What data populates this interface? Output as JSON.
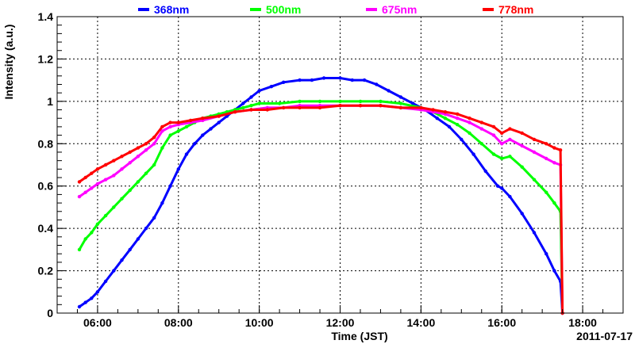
{
  "chart_data": {
    "type": "scatter",
    "xlabel": "Time (JST)",
    "ylabel": "Intensity (a.u.)",
    "date_label": "2011-07-17",
    "x_unit": "hours (JST)",
    "xlim": [
      5.0,
      19.0
    ],
    "ylim": [
      0,
      1.4
    ],
    "x_ticks": [
      {
        "value": 6,
        "label": "06:00"
      },
      {
        "value": 8,
        "label": "08:00"
      },
      {
        "value": 10,
        "label": "10:00"
      },
      {
        "value": 12,
        "label": "12:00"
      },
      {
        "value": 14,
        "label": "14:00"
      },
      {
        "value": 16,
        "label": "16:00"
      },
      {
        "value": 18,
        "label": "18:00"
      }
    ],
    "y_ticks": [
      {
        "value": 0,
        "label": "0"
      },
      {
        "value": 0.2,
        "label": "0.2"
      },
      {
        "value": 0.4,
        "label": "0.4"
      },
      {
        "value": 0.6,
        "label": "0.6"
      },
      {
        "value": 0.8,
        "label": "0.8"
      },
      {
        "value": 1,
        "label": "1"
      },
      {
        "value": 1.2,
        "label": "1.2"
      },
      {
        "value": 1.4,
        "label": "1.4"
      }
    ],
    "grid": true,
    "legend_position": "top",
    "series": [
      {
        "name": "368nm",
        "color": "#0000ff",
        "x": [
          5.55,
          5.7,
          5.85,
          6.0,
          6.2,
          6.4,
          6.6,
          6.8,
          7.0,
          7.2,
          7.4,
          7.6,
          7.8,
          8.0,
          8.2,
          8.4,
          8.6,
          8.8,
          9.0,
          9.2,
          9.4,
          9.6,
          9.8,
          10.0,
          10.3,
          10.6,
          11.0,
          11.3,
          11.6,
          12.0,
          12.3,
          12.6,
          12.9,
          13.2,
          13.5,
          13.8,
          14.1,
          14.4,
          14.7,
          15.0,
          15.3,
          15.6,
          15.9,
          16.0,
          16.2,
          16.5,
          16.8,
          17.1,
          17.3,
          17.45,
          17.5
        ],
        "y": [
          0.03,
          0.05,
          0.07,
          0.1,
          0.15,
          0.2,
          0.25,
          0.3,
          0.35,
          0.4,
          0.45,
          0.52,
          0.6,
          0.68,
          0.75,
          0.8,
          0.84,
          0.87,
          0.9,
          0.93,
          0.96,
          0.99,
          1.02,
          1.05,
          1.07,
          1.09,
          1.1,
          1.1,
          1.11,
          1.11,
          1.1,
          1.1,
          1.08,
          1.05,
          1.02,
          0.99,
          0.96,
          0.92,
          0.88,
          0.82,
          0.75,
          0.67,
          0.6,
          0.59,
          0.55,
          0.47,
          0.38,
          0.28,
          0.2,
          0.15,
          0.0
        ]
      },
      {
        "name": "500nm",
        "color": "#00ff00",
        "x": [
          5.55,
          5.7,
          5.85,
          6.0,
          6.2,
          6.4,
          6.6,
          6.8,
          7.0,
          7.2,
          7.4,
          7.6,
          7.8,
          8.0,
          8.2,
          8.4,
          8.6,
          8.8,
          9.0,
          9.2,
          9.4,
          9.6,
          9.8,
          10.0,
          10.5,
          11.0,
          11.5,
          12.0,
          12.5,
          13.0,
          13.5,
          14.0,
          14.3,
          14.6,
          14.9,
          15.2,
          15.5,
          15.8,
          16.0,
          16.2,
          16.5,
          16.8,
          17.1,
          17.3,
          17.45,
          17.5
        ],
        "y": [
          0.3,
          0.35,
          0.38,
          0.42,
          0.46,
          0.5,
          0.54,
          0.58,
          0.62,
          0.66,
          0.7,
          0.78,
          0.84,
          0.86,
          0.88,
          0.9,
          0.92,
          0.93,
          0.94,
          0.95,
          0.96,
          0.97,
          0.98,
          0.99,
          0.99,
          1.0,
          1.0,
          1.0,
          1.0,
          1.0,
          0.99,
          0.97,
          0.95,
          0.92,
          0.89,
          0.85,
          0.8,
          0.75,
          0.73,
          0.74,
          0.69,
          0.63,
          0.57,
          0.52,
          0.48,
          0.0
        ]
      },
      {
        "name": "675nm",
        "color": "#ff00ff",
        "x": [
          5.55,
          5.7,
          5.85,
          6.0,
          6.2,
          6.4,
          6.6,
          6.8,
          7.0,
          7.2,
          7.4,
          7.6,
          7.8,
          8.0,
          8.3,
          8.6,
          9.0,
          9.4,
          9.8,
          10.2,
          10.6,
          11.0,
          11.5,
          12.0,
          12.5,
          13.0,
          13.5,
          14.0,
          14.3,
          14.6,
          14.9,
          15.2,
          15.5,
          15.8,
          16.0,
          16.2,
          16.5,
          16.8,
          17.1,
          17.3,
          17.45,
          17.5
        ],
        "y": [
          0.55,
          0.57,
          0.59,
          0.61,
          0.63,
          0.65,
          0.68,
          0.71,
          0.74,
          0.77,
          0.8,
          0.86,
          0.88,
          0.89,
          0.9,
          0.91,
          0.93,
          0.95,
          0.96,
          0.97,
          0.97,
          0.98,
          0.98,
          0.98,
          0.98,
          0.98,
          0.97,
          0.96,
          0.95,
          0.94,
          0.92,
          0.9,
          0.87,
          0.84,
          0.8,
          0.82,
          0.79,
          0.76,
          0.73,
          0.71,
          0.7,
          0.0
        ]
      },
      {
        "name": "778nm",
        "color": "#ff0000",
        "x": [
          5.55,
          5.7,
          5.85,
          6.0,
          6.2,
          6.4,
          6.6,
          6.8,
          7.0,
          7.2,
          7.4,
          7.6,
          7.8,
          8.0,
          8.3,
          8.6,
          9.0,
          9.4,
          9.8,
          10.2,
          10.6,
          11.0,
          11.5,
          12.0,
          12.5,
          13.0,
          13.5,
          14.0,
          14.3,
          14.6,
          14.9,
          15.2,
          15.5,
          15.8,
          16.0,
          16.2,
          16.5,
          16.8,
          17.1,
          17.3,
          17.45,
          17.5
        ],
        "y": [
          0.62,
          0.64,
          0.66,
          0.68,
          0.7,
          0.72,
          0.74,
          0.76,
          0.78,
          0.8,
          0.83,
          0.88,
          0.9,
          0.9,
          0.91,
          0.92,
          0.93,
          0.95,
          0.96,
          0.96,
          0.97,
          0.97,
          0.97,
          0.98,
          0.98,
          0.98,
          0.97,
          0.97,
          0.96,
          0.95,
          0.94,
          0.92,
          0.9,
          0.88,
          0.85,
          0.87,
          0.85,
          0.82,
          0.8,
          0.78,
          0.77,
          0.0
        ]
      }
    ]
  }
}
